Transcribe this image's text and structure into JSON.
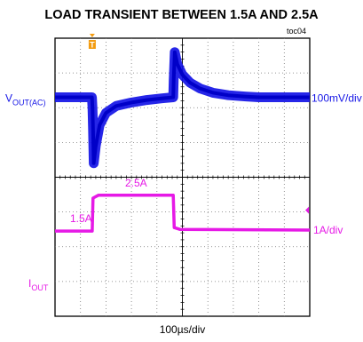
{
  "title": "LOAD TRANSIENT BETWEEN 1.5A AND 2.5A",
  "figure_id": "toc04",
  "chart_data": {
    "type": "line",
    "title": "LOAD TRANSIENT BETWEEN 1.5A AND 2.5A",
    "xlabel": "100µs/div",
    "grid": true,
    "x_divisions": 10,
    "y_divisions": 8,
    "trigger_marker": "T",
    "series": [
      {
        "name_main": "V",
        "name_sub": "OUT(AC)",
        "scale": "100mV/div",
        "color": "#1414e6",
        "kind": "voltage",
        "x_div": [
          0.0,
          1.45,
          1.47,
          1.49,
          1.52,
          1.6,
          1.75,
          2.0,
          2.4,
          3.0,
          3.6,
          4.2,
          4.64,
          4.66,
          4.7,
          4.8,
          5.0,
          5.3,
          5.7,
          6.2,
          6.8,
          7.5,
          8.0,
          8.5,
          9.2,
          10.0
        ],
        "y_div": [
          2.3,
          2.3,
          2.0,
          1.4,
          0.4,
          0.9,
          1.5,
          1.85,
          2.05,
          2.15,
          2.22,
          2.27,
          2.3,
          2.8,
          3.6,
          3.25,
          2.95,
          2.72,
          2.55,
          2.43,
          2.36,
          2.32,
          2.3,
          2.3,
          2.3,
          2.3
        ]
      },
      {
        "name_main": "I",
        "name_sub": "OUT",
        "scale": "1A/div",
        "color": "#e619e6",
        "kind": "current",
        "x_div": [
          0.0,
          1.46,
          1.49,
          1.7,
          4.64,
          4.68,
          4.9,
          10.0
        ],
        "y_div": [
          -1.55,
          -1.55,
          -0.6,
          -0.52,
          -0.52,
          -1.45,
          -1.5,
          -1.52
        ],
        "low_label": "1.5A",
        "high_label": "2.5A"
      }
    ]
  }
}
